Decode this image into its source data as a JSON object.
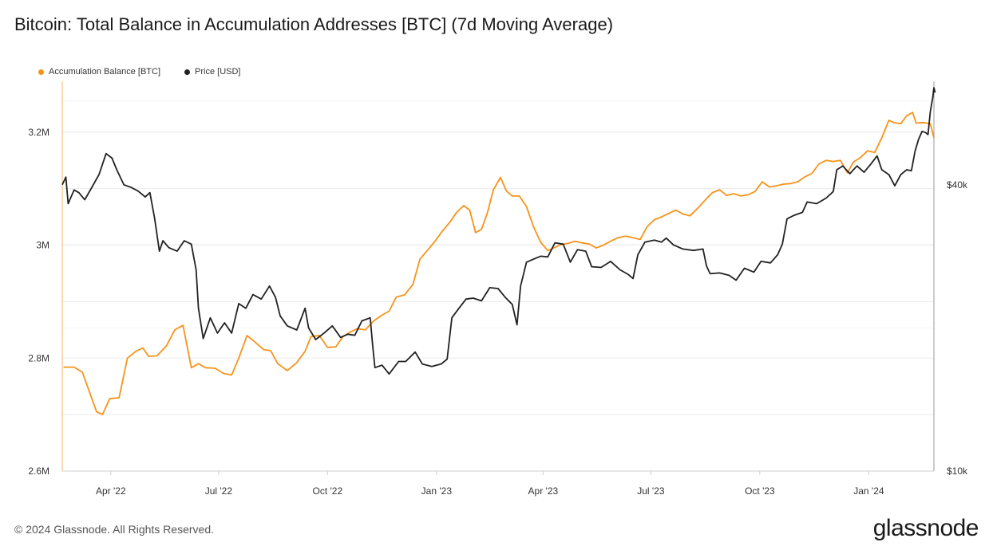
{
  "chart_data": {
    "type": "line",
    "title": "Bitcoin: Total Balance in Accumulation Addresses [BTC] (7d Moving Average)",
    "x_ticks": [
      "Apr '22",
      "Jul '22",
      "Oct '22",
      "Jan '23",
      "Apr '23",
      "Jul '23",
      "Oct '23",
      "Jan '24"
    ],
    "x_range": [
      "2022-02-19",
      "2024-02-25"
    ],
    "y_left": {
      "ticks": [
        "2.6M",
        "2.8M",
        "3M",
        "3.2M"
      ],
      "range": [
        2600000,
        3290000
      ]
    },
    "y_right": {
      "ticks": [
        "$10k",
        "$40k"
      ],
      "scale": "log",
      "range": [
        10000,
        66000
      ]
    },
    "legend_position": "top-left",
    "grid": true,
    "series": [
      {
        "name": "Accumulation Balance [BTC]",
        "axis": "left",
        "color": "#f7931a",
        "points": [
          [
            "2022-02-20",
            2784000
          ],
          [
            "2022-03-01",
            2784000
          ],
          [
            "2022-03-08",
            2775000
          ],
          [
            "2022-03-14",
            2740000
          ],
          [
            "2022-03-20",
            2705000
          ],
          [
            "2022-03-25",
            2700000
          ],
          [
            "2022-03-31",
            2728000
          ],
          [
            "2022-04-08",
            2730000
          ],
          [
            "2022-04-15",
            2800000
          ],
          [
            "2022-04-22",
            2812000
          ],
          [
            "2022-04-28",
            2818000
          ],
          [
            "2022-05-03",
            2803000
          ],
          [
            "2022-05-10",
            2804000
          ],
          [
            "2022-05-18",
            2822000
          ],
          [
            "2022-05-25",
            2850000
          ],
          [
            "2022-06-01",
            2858000
          ],
          [
            "2022-06-08",
            2783000
          ],
          [
            "2022-06-14",
            2790000
          ],
          [
            "2022-06-20",
            2783000
          ],
          [
            "2022-06-28",
            2782000
          ],
          [
            "2022-07-05",
            2773000
          ],
          [
            "2022-07-12",
            2770000
          ],
          [
            "2022-07-18",
            2800000
          ],
          [
            "2022-07-25",
            2840000
          ],
          [
            "2022-08-01",
            2828000
          ],
          [
            "2022-08-08",
            2815000
          ],
          [
            "2022-08-14",
            2813000
          ],
          [
            "2022-08-20",
            2790000
          ],
          [
            "2022-08-28",
            2778000
          ],
          [
            "2022-09-05",
            2792000
          ],
          [
            "2022-09-12",
            2812000
          ],
          [
            "2022-09-17",
            2838000
          ],
          [
            "2022-09-24",
            2840000
          ],
          [
            "2022-10-01",
            2819000
          ],
          [
            "2022-10-08",
            2820000
          ],
          [
            "2022-10-14",
            2838000
          ],
          [
            "2022-10-20",
            2846000
          ],
          [
            "2022-10-26",
            2852000
          ],
          [
            "2022-11-02",
            2850000
          ],
          [
            "2022-11-09",
            2866000
          ],
          [
            "2022-11-16",
            2876000
          ],
          [
            "2022-11-22",
            2883000
          ],
          [
            "2022-11-28",
            2908000
          ],
          [
            "2022-12-05",
            2912000
          ],
          [
            "2022-12-12",
            2930000
          ],
          [
            "2022-12-18",
            2975000
          ],
          [
            "2022-12-24",
            2990000
          ],
          [
            "2022-12-30",
            3005000
          ],
          [
            "2023-01-06",
            3025000
          ],
          [
            "2023-01-12",
            3040000
          ],
          [
            "2023-01-18",
            3058000
          ],
          [
            "2023-01-24",
            3070000
          ],
          [
            "2023-01-29",
            3062000
          ],
          [
            "2023-02-03",
            3022000
          ],
          [
            "2023-02-08",
            3028000
          ],
          [
            "2023-02-13",
            3057000
          ],
          [
            "2023-02-18",
            3098000
          ],
          [
            "2023-02-24",
            3120000
          ],
          [
            "2023-03-01",
            3096000
          ],
          [
            "2023-03-06",
            3087000
          ],
          [
            "2023-03-12",
            3087000
          ],
          [
            "2023-03-18",
            3068000
          ],
          [
            "2023-03-24",
            3032000
          ],
          [
            "2023-03-30",
            3005000
          ],
          [
            "2023-04-05",
            2990000
          ],
          [
            "2023-04-10",
            2995000
          ],
          [
            "2023-04-16",
            3001000
          ],
          [
            "2023-04-22",
            3003000
          ],
          [
            "2023-04-28",
            3007000
          ],
          [
            "2023-05-04",
            3004000
          ],
          [
            "2023-05-10",
            3002000
          ],
          [
            "2023-05-16",
            2995000
          ],
          [
            "2023-05-22",
            3000000
          ],
          [
            "2023-05-28",
            3007000
          ],
          [
            "2023-06-03",
            3013000
          ],
          [
            "2023-06-10",
            3016000
          ],
          [
            "2023-06-16",
            3013000
          ],
          [
            "2023-06-22",
            3010000
          ],
          [
            "2023-06-28",
            3033000
          ],
          [
            "2023-07-04",
            3045000
          ],
          [
            "2023-07-10",
            3050000
          ],
          [
            "2023-07-16",
            3056000
          ],
          [
            "2023-07-22",
            3062000
          ],
          [
            "2023-07-28",
            3055000
          ],
          [
            "2023-08-03",
            3052000
          ],
          [
            "2023-08-10",
            3066000
          ],
          [
            "2023-08-16",
            3080000
          ],
          [
            "2023-08-22",
            3093000
          ],
          [
            "2023-08-28",
            3098000
          ],
          [
            "2023-09-03",
            3088000
          ],
          [
            "2023-09-09",
            3091000
          ],
          [
            "2023-09-15",
            3087000
          ],
          [
            "2023-09-21",
            3089000
          ],
          [
            "2023-09-27",
            3095000
          ],
          [
            "2023-10-03",
            3112000
          ],
          [
            "2023-10-09",
            3103000
          ],
          [
            "2023-10-15",
            3105000
          ],
          [
            "2023-10-21",
            3108000
          ],
          [
            "2023-10-27",
            3109000
          ],
          [
            "2023-11-02",
            3112000
          ],
          [
            "2023-11-08",
            3121000
          ],
          [
            "2023-11-14",
            3127000
          ],
          [
            "2023-11-20",
            3144000
          ],
          [
            "2023-11-26",
            3150000
          ],
          [
            "2023-12-02",
            3148000
          ],
          [
            "2023-12-08",
            3150000
          ],
          [
            "2023-12-14",
            3128000
          ],
          [
            "2023-12-19",
            3147000
          ],
          [
            "2023-12-25",
            3155000
          ],
          [
            "2023-12-31",
            3167000
          ],
          [
            "2024-01-06",
            3164000
          ],
          [
            "2024-01-12",
            3190000
          ],
          [
            "2024-01-18",
            3221000
          ],
          [
            "2024-01-22",
            3217000
          ],
          [
            "2024-01-28",
            3215000
          ],
          [
            "2024-02-02",
            3229000
          ],
          [
            "2024-02-07",
            3235000
          ],
          [
            "2024-02-10",
            3216000
          ],
          [
            "2024-02-16",
            3217000
          ],
          [
            "2024-02-22",
            3215000
          ],
          [
            "2024-02-25",
            3190000
          ]
        ]
      },
      {
        "name": "Price [USD]",
        "axis": "right",
        "color": "#222222",
        "points": [
          [
            "2022-02-19",
            40000
          ],
          [
            "2022-02-22",
            41500
          ],
          [
            "2022-02-24",
            36500
          ],
          [
            "2022-03-01",
            39000
          ],
          [
            "2022-03-05",
            38500
          ],
          [
            "2022-03-10",
            37200
          ],
          [
            "2022-03-16",
            39500
          ],
          [
            "2022-03-22",
            42000
          ],
          [
            "2022-03-28",
            46500
          ],
          [
            "2022-04-02",
            45500
          ],
          [
            "2022-04-06",
            43000
          ],
          [
            "2022-04-12",
            40000
          ],
          [
            "2022-04-18",
            39500
          ],
          [
            "2022-04-24",
            38800
          ],
          [
            "2022-04-30",
            37700
          ],
          [
            "2022-05-04",
            38500
          ],
          [
            "2022-05-08",
            34000
          ],
          [
            "2022-05-12",
            29000
          ],
          [
            "2022-05-15",
            30500
          ],
          [
            "2022-05-20",
            29500
          ],
          [
            "2022-05-27",
            29000
          ],
          [
            "2022-06-02",
            30500
          ],
          [
            "2022-06-08",
            30000
          ],
          [
            "2022-06-12",
            26500
          ],
          [
            "2022-06-14",
            22000
          ],
          [
            "2022-06-18",
            19000
          ],
          [
            "2022-06-24",
            21000
          ],
          [
            "2022-06-30",
            19500
          ],
          [
            "2022-07-06",
            20500
          ],
          [
            "2022-07-12",
            19500
          ],
          [
            "2022-07-18",
            22500
          ],
          [
            "2022-07-24",
            22000
          ],
          [
            "2022-07-30",
            23500
          ],
          [
            "2022-08-06",
            23000
          ],
          [
            "2022-08-13",
            24500
          ],
          [
            "2022-08-18",
            23200
          ],
          [
            "2022-08-22",
            21200
          ],
          [
            "2022-08-28",
            20200
          ],
          [
            "2022-09-05",
            19800
          ],
          [
            "2022-09-12",
            22000
          ],
          [
            "2022-09-15",
            20000
          ],
          [
            "2022-09-21",
            18900
          ],
          [
            "2022-09-28",
            19500
          ],
          [
            "2022-10-05",
            20200
          ],
          [
            "2022-10-12",
            19100
          ],
          [
            "2022-10-18",
            19400
          ],
          [
            "2022-10-24",
            19300
          ],
          [
            "2022-10-30",
            20700
          ],
          [
            "2022-11-06",
            21000
          ],
          [
            "2022-11-08",
            18500
          ],
          [
            "2022-11-10",
            16500
          ],
          [
            "2022-11-16",
            16700
          ],
          [
            "2022-11-22",
            16000
          ],
          [
            "2022-11-30",
            17000
          ],
          [
            "2022-12-06",
            17000
          ],
          [
            "2022-12-14",
            17800
          ],
          [
            "2022-12-20",
            16800
          ],
          [
            "2022-12-28",
            16600
          ],
          [
            "2023-01-05",
            16800
          ],
          [
            "2023-01-10",
            17200
          ],
          [
            "2023-01-14",
            21000
          ],
          [
            "2023-01-20",
            22000
          ],
          [
            "2023-01-26",
            23000
          ],
          [
            "2023-02-01",
            23100
          ],
          [
            "2023-02-08",
            22800
          ],
          [
            "2023-02-15",
            24300
          ],
          [
            "2023-02-22",
            24200
          ],
          [
            "2023-02-28",
            23200
          ],
          [
            "2023-03-06",
            22400
          ],
          [
            "2023-03-10",
            20300
          ],
          [
            "2023-03-13",
            24500
          ],
          [
            "2023-03-18",
            27500
          ],
          [
            "2023-03-24",
            27900
          ],
          [
            "2023-03-30",
            28300
          ],
          [
            "2023-04-05",
            28200
          ],
          [
            "2023-04-11",
            30200
          ],
          [
            "2023-04-18",
            30000
          ],
          [
            "2023-04-24",
            27500
          ],
          [
            "2023-04-30",
            29200
          ],
          [
            "2023-05-07",
            29000
          ],
          [
            "2023-05-12",
            26900
          ],
          [
            "2023-05-20",
            26800
          ],
          [
            "2023-05-28",
            27600
          ],
          [
            "2023-06-05",
            26500
          ],
          [
            "2023-06-12",
            25900
          ],
          [
            "2023-06-16",
            25400
          ],
          [
            "2023-06-20",
            28500
          ],
          [
            "2023-06-26",
            30300
          ],
          [
            "2023-07-04",
            30600
          ],
          [
            "2023-07-10",
            30300
          ],
          [
            "2023-07-14",
            30900
          ],
          [
            "2023-07-20",
            29900
          ],
          [
            "2023-07-28",
            29300
          ],
          [
            "2023-08-06",
            29100
          ],
          [
            "2023-08-14",
            29300
          ],
          [
            "2023-08-17",
            27000
          ],
          [
            "2023-08-20",
            26000
          ],
          [
            "2023-08-28",
            26100
          ],
          [
            "2023-09-05",
            25800
          ],
          [
            "2023-09-11",
            25200
          ],
          [
            "2023-09-18",
            26700
          ],
          [
            "2023-09-26",
            26200
          ],
          [
            "2023-10-02",
            27600
          ],
          [
            "2023-10-10",
            27400
          ],
          [
            "2023-10-16",
            28500
          ],
          [
            "2023-10-20",
            30000
          ],
          [
            "2023-10-24",
            33900
          ],
          [
            "2023-10-30",
            34500
          ],
          [
            "2023-11-06",
            35000
          ],
          [
            "2023-11-10",
            36800
          ],
          [
            "2023-11-18",
            36500
          ],
          [
            "2023-11-26",
            37500
          ],
          [
            "2023-12-02",
            38700
          ],
          [
            "2023-12-05",
            43000
          ],
          [
            "2023-12-10",
            43800
          ],
          [
            "2023-12-16",
            42200
          ],
          [
            "2023-12-22",
            43800
          ],
          [
            "2023-12-28",
            42500
          ],
          [
            "2024-01-03",
            44300
          ],
          [
            "2024-01-08",
            46000
          ],
          [
            "2024-01-12",
            43000
          ],
          [
            "2024-01-18",
            42000
          ],
          [
            "2024-01-23",
            39800
          ],
          [
            "2024-01-28",
            42000
          ],
          [
            "2024-02-02",
            43000
          ],
          [
            "2024-02-06",
            42800
          ],
          [
            "2024-02-09",
            47000
          ],
          [
            "2024-02-12",
            49800
          ],
          [
            "2024-02-15",
            51800
          ],
          [
            "2024-02-18",
            51500
          ],
          [
            "2024-02-20",
            51000
          ],
          [
            "2024-02-22",
            57000
          ],
          [
            "2024-02-24",
            61000
          ],
          [
            "2024-02-25",
            64000
          ],
          [
            "2024-02-26",
            62500
          ]
        ]
      }
    ]
  },
  "footer": {
    "copyright": "© 2024 Glassnode. All Rights Reserved.",
    "brand": "glassnode"
  }
}
